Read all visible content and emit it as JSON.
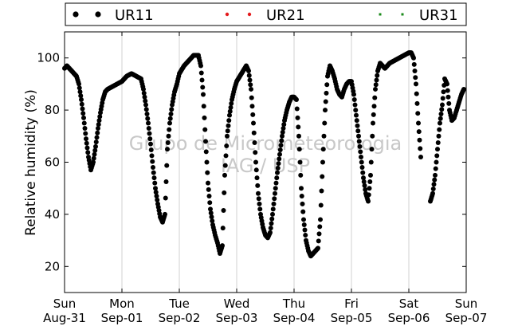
{
  "chart_data": {
    "type": "scatter",
    "ylabel": "Relative humidity (%)",
    "xlabel": "",
    "ylim": [
      10,
      110
    ],
    "yticks": [
      20,
      40,
      60,
      80,
      100
    ],
    "xlim": [
      "2015-08-31",
      "2015-09-07"
    ],
    "x_ticks": [
      {
        "date": "2015-08-31",
        "day": "Sun",
        "label": "Aug-31"
      },
      {
        "date": "2015-09-01",
        "day": "Mon",
        "label": "Sep-01"
      },
      {
        "date": "2015-09-02",
        "day": "Tue",
        "label": "Sep-02"
      },
      {
        "date": "2015-09-03",
        "day": "Wed",
        "label": "Sep-03"
      },
      {
        "date": "2015-09-04",
        "day": "Thu",
        "label": "Sep-04"
      },
      {
        "date": "2015-09-05",
        "day": "Fri",
        "label": "Sep-05"
      },
      {
        "date": "2015-09-06",
        "day": "Sat",
        "label": "Sep-06"
      },
      {
        "date": "2015-09-07",
        "day": "Sun",
        "label": "Sep-07"
      }
    ],
    "grid": "vertical",
    "legend_position": "top",
    "watermark": [
      "Grupo de Micrometeorologia",
      "IAG / USP"
    ],
    "series": [
      {
        "name": "UR11",
        "color": "#000000",
        "marker": "circle",
        "points": [
          [
            "2015-08-31 00:00",
            96
          ],
          [
            "2015-08-31 01:00",
            97
          ],
          [
            "2015-08-31 02:00",
            96
          ],
          [
            "2015-08-31 03:00",
            95
          ],
          [
            "2015-08-31 04:00",
            94
          ],
          [
            "2015-08-31 05:00",
            93
          ],
          [
            "2015-08-31 06:00",
            90
          ],
          [
            "2015-08-31 07:00",
            84
          ],
          [
            "2015-08-31 08:00",
            77
          ],
          [
            "2015-08-31 09:00",
            69
          ],
          [
            "2015-08-31 10:00",
            62
          ],
          [
            "2015-08-31 11:00",
            57
          ],
          [
            "2015-08-31 12:00",
            60
          ],
          [
            "2015-08-31 13:00",
            66
          ],
          [
            "2015-08-31 14:00",
            73
          ],
          [
            "2015-08-31 15:00",
            79
          ],
          [
            "2015-08-31 16:00",
            84
          ],
          [
            "2015-08-31 17:00",
            87
          ],
          [
            "2015-08-31 18:00",
            88
          ],
          [
            "2015-08-31 20:00",
            89
          ],
          [
            "2015-08-31 22:00",
            90
          ],
          [
            "2015-09-01 00:00",
            91
          ],
          [
            "2015-09-01 02:00",
            93
          ],
          [
            "2015-09-01 04:00",
            94
          ],
          [
            "2015-09-01 06:00",
            93
          ],
          [
            "2015-09-01 08:00",
            92
          ],
          [
            "2015-09-01 09:00",
            88
          ],
          [
            "2015-09-01 10:00",
            82
          ],
          [
            "2015-09-01 11:00",
            75
          ],
          [
            "2015-09-01 12:00",
            67
          ],
          [
            "2015-09-01 13:00",
            58
          ],
          [
            "2015-09-01 14:00",
            50
          ],
          [
            "2015-09-01 15:00",
            44
          ],
          [
            "2015-09-01 16:00",
            39
          ],
          [
            "2015-09-01 17:00",
            37
          ],
          [
            "2015-09-01 18:00",
            40
          ],
          [
            "2015-09-01 19:00",
            65
          ],
          [
            "2015-09-01 20:00",
            75
          ],
          [
            "2015-09-01 21:00",
            82
          ],
          [
            "2015-09-01 22:00",
            87
          ],
          [
            "2015-09-01 23:00",
            90
          ],
          [
            "2015-09-02 00:00",
            94
          ],
          [
            "2015-09-02 02:00",
            97
          ],
          [
            "2015-09-02 04:00",
            99
          ],
          [
            "2015-09-02 06:00",
            101
          ],
          [
            "2015-09-02 08:00",
            101
          ],
          [
            "2015-09-02 09:00",
            97
          ],
          [
            "2015-09-02 10:00",
            86
          ],
          [
            "2015-09-02 11:00",
            68
          ],
          [
            "2015-09-02 12:00",
            52
          ],
          [
            "2015-09-02 13:00",
            42
          ],
          [
            "2015-09-02 14:00",
            36
          ],
          [
            "2015-09-02 15:00",
            32
          ],
          [
            "2015-09-02 16:00",
            29
          ],
          [
            "2015-09-02 17:00",
            25
          ],
          [
            "2015-09-02 18:00",
            28
          ],
          [
            "2015-09-02 19:00",
            55
          ],
          [
            "2015-09-02 20:00",
            70
          ],
          [
            "2015-09-02 21:00",
            78
          ],
          [
            "2015-09-02 22:00",
            84
          ],
          [
            "2015-09-02 23:00",
            88
          ],
          [
            "2015-09-03 00:00",
            91
          ],
          [
            "2015-09-03 02:00",
            94
          ],
          [
            "2015-09-03 04:00",
            97
          ],
          [
            "2015-09-03 05:00",
            95
          ],
          [
            "2015-09-03 06:00",
            88
          ],
          [
            "2015-09-03 07:00",
            75
          ],
          [
            "2015-09-03 08:00",
            60
          ],
          [
            "2015-09-03 09:00",
            48
          ],
          [
            "2015-09-03 10:00",
            40
          ],
          [
            "2015-09-03 11:00",
            35
          ],
          [
            "2015-09-03 12:00",
            32
          ],
          [
            "2015-09-03 13:00",
            31
          ],
          [
            "2015-09-03 14:00",
            33
          ],
          [
            "2015-09-03 15:00",
            40
          ],
          [
            "2015-09-03 16:00",
            48
          ],
          [
            "2015-09-03 17:00",
            56
          ],
          [
            "2015-09-03 18:00",
            63
          ],
          [
            "2015-09-03 19:00",
            70
          ],
          [
            "2015-09-03 20:00",
            76
          ],
          [
            "2015-09-03 21:00",
            80
          ],
          [
            "2015-09-03 22:00",
            83
          ],
          [
            "2015-09-03 23:00",
            85
          ],
          [
            "2015-09-04 00:00",
            85
          ],
          [
            "2015-09-04 01:00",
            84
          ],
          [
            "2015-09-04 02:00",
            70
          ],
          [
            "2015-09-04 03:00",
            50
          ],
          [
            "2015-09-04 04:00",
            38
          ],
          [
            "2015-09-04 05:00",
            30
          ],
          [
            "2015-09-04 06:00",
            26
          ],
          [
            "2015-09-04 07:00",
            24
          ],
          [
            "2015-09-04 08:00",
            25
          ],
          [
            "2015-09-04 09:00",
            26
          ],
          [
            "2015-09-04 10:00",
            27
          ],
          [
            "2015-09-04 11:00",
            38
          ],
          [
            "2015-09-04 12:00",
            60
          ],
          [
            "2015-09-04 13:00",
            80
          ],
          [
            "2015-09-04 14:00",
            93
          ],
          [
            "2015-09-04 15:00",
            97
          ],
          [
            "2015-09-04 16:00",
            95
          ],
          [
            "2015-09-04 17:00",
            92
          ],
          [
            "2015-09-04 18:00",
            88
          ],
          [
            "2015-09-04 19:00",
            86
          ],
          [
            "2015-09-04 20:00",
            85
          ],
          [
            "2015-09-04 21:00",
            88
          ],
          [
            "2015-09-04 22:00",
            90
          ],
          [
            "2015-09-04 23:00",
            91
          ],
          [
            "2015-09-05 00:00",
            91
          ],
          [
            "2015-09-05 01:00",
            86
          ],
          [
            "2015-09-05 02:00",
            78
          ],
          [
            "2015-09-05 03:00",
            70
          ],
          [
            "2015-09-05 04:00",
            62
          ],
          [
            "2015-09-05 05:00",
            54
          ],
          [
            "2015-09-05 06:00",
            48
          ],
          [
            "2015-09-05 07:00",
            45
          ],
          [
            "2015-09-05 08:00",
            55
          ],
          [
            "2015-09-05 09:00",
            75
          ],
          [
            "2015-09-05 10:00",
            88
          ],
          [
            "2015-09-05 11:00",
            95
          ],
          [
            "2015-09-05 12:00",
            98
          ],
          [
            "2015-09-05 14:00",
            96
          ],
          [
            "2015-09-05 16:00",
            98
          ],
          [
            "2015-09-05 18:00",
            99
          ],
          [
            "2015-09-05 20:00",
            100
          ],
          [
            "2015-09-05 22:00",
            101
          ],
          [
            "2015-09-06 00:00",
            102
          ],
          [
            "2015-09-06 01:00",
            102
          ],
          [
            "2015-09-06 02:00",
            100
          ],
          [
            "2015-09-06 03:00",
            90
          ],
          [
            "2015-09-06 04:00",
            75
          ],
          [
            "2015-09-06 05:00",
            62
          ],
          [
            "2015-09-06 09:00",
            45
          ],
          [
            "2015-09-06 10:00",
            48
          ],
          [
            "2015-09-06 11:00",
            55
          ],
          [
            "2015-09-06 12:00",
            65
          ],
          [
            "2015-09-06 13:00",
            75
          ],
          [
            "2015-09-06 14:00",
            82
          ],
          [
            "2015-09-06 15:00",
            92
          ],
          [
            "2015-09-06 16:00",
            90
          ],
          [
            "2015-09-06 17:00",
            80
          ],
          [
            "2015-09-06 18:00",
            76
          ],
          [
            "2015-09-06 19:00",
            77
          ],
          [
            "2015-09-06 20:00",
            80
          ],
          [
            "2015-09-06 21:00",
            83
          ],
          [
            "2015-09-06 22:00",
            86
          ],
          [
            "2015-09-06 23:00",
            88
          ]
        ]
      },
      {
        "name": "UR21",
        "color": "#e41a1c",
        "marker": "circle",
        "points": []
      },
      {
        "name": "UR31",
        "color": "#1a8a1a",
        "marker": "square",
        "points": []
      }
    ]
  }
}
